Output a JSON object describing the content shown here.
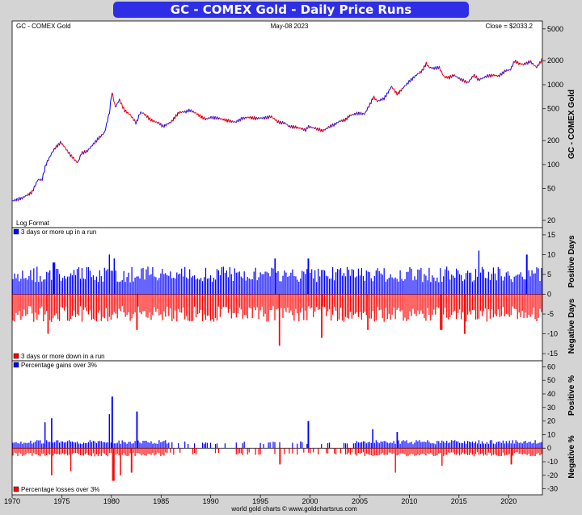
{
  "header": {
    "title": "GC - COMEX Gold - Daily Price Runs",
    "symbol_label": "GC - COMEX Gold",
    "date_label": "May-08  2023",
    "close_label": "Close = $2033.2",
    "footer": "world gold charts © www.goldchartsrus.com"
  },
  "colors": {
    "title_bar": "#2e2ee6",
    "up": "#0000ff",
    "down": "#ff0000",
    "background": "#ffffff",
    "frame": "#d4d4d4"
  },
  "chart_data": [
    {
      "type": "line",
      "name": "price",
      "scale": "log",
      "ylabel": "GC - COMEX Gold",
      "note": "Log Format",
      "ylim": [
        17,
        6000
      ],
      "xlim": [
        1970,
        2023.4
      ],
      "yticks": [
        20,
        50,
        100,
        200,
        500,
        1000,
        2000,
        5000
      ],
      "xticks": [
        1970,
        1975,
        1980,
        1985,
        1990,
        1995,
        2000,
        2005,
        2010,
        2015,
        2020
      ],
      "x": [
        1970.0,
        1971.0,
        1972.0,
        1972.6,
        1973.0,
        1973.4,
        1974.0,
        1974.3,
        1974.9,
        1975.3,
        1975.8,
        1976.6,
        1977.0,
        1977.5,
        1978.0,
        1978.8,
        1979.3,
        1979.8,
        1980.05,
        1980.4,
        1980.8,
        1981.3,
        1981.9,
        1982.5,
        1982.9,
        1983.2,
        1984.0,
        1984.8,
        1985.2,
        1986.0,
        1986.8,
        1987.5,
        1987.9,
        1988.5,
        1989.0,
        1989.5,
        1990.0,
        1990.8,
        1991.5,
        1992.5,
        1993.2,
        1993.8,
        1994.5,
        1995.5,
        1996.1,
        1996.8,
        1997.5,
        1997.9,
        1998.5,
        1999.0,
        1999.6,
        1999.8,
        2000.5,
        2001.3,
        2002.0,
        2002.5,
        2003.0,
        2003.5,
        2004.0,
        2004.8,
        2005.5,
        2006.0,
        2006.4,
        2006.8,
        2007.5,
        2008.2,
        2008.8,
        2009.5,
        2010.0,
        2010.8,
        2011.3,
        2011.7,
        2012.0,
        2012.5,
        2013.0,
        2013.5,
        2014.0,
        2014.5,
        2015.0,
        2015.9,
        2016.5,
        2017.0,
        2017.8,
        2018.5,
        2019.0,
        2019.7,
        2020.2,
        2020.6,
        2021.0,
        2021.5,
        2022.2,
        2022.8,
        2023.35
      ],
      "y": [
        35,
        38,
        45,
        65,
        64,
        100,
        140,
        160,
        190,
        165,
        135,
        105,
        140,
        145,
        170,
        220,
        250,
        450,
        820,
        520,
        650,
        480,
        420,
        330,
        450,
        440,
        360,
        330,
        300,
        340,
        450,
        460,
        480,
        440,
        400,
        370,
        390,
        380,
        360,
        340,
        380,
        390,
        380,
        385,
        400,
        340,
        330,
        300,
        295,
        285,
        270,
        300,
        285,
        265,
        300,
        320,
        350,
        360,
        410,
        440,
        430,
        560,
        700,
        620,
        680,
        950,
        760,
        950,
        1100,
        1350,
        1500,
        1850,
        1650,
        1600,
        1650,
        1250,
        1230,
        1320,
        1200,
        1060,
        1320,
        1150,
        1280,
        1320,
        1280,
        1500,
        1550,
        2000,
        1850,
        1800,
        1950,
        1650,
        2033.2
      ]
    },
    {
      "type": "bar",
      "name": "run_days",
      "ylabel_top": "Positive Days",
      "ylabel_bottom": "Negative Days",
      "legend_up": "3 days or more up in a run",
      "legend_down": "3 days or more down in a run",
      "ylim": [
        -16,
        16
      ],
      "yticks": [
        -15,
        -10,
        -5,
        0,
        5,
        10,
        15
      ],
      "peaks_x": [
        1974.2,
        1979.8,
        1980.3,
        1996.5,
        1999.8,
        2017.0,
        2021.8
      ],
      "peaks_pos": [
        8,
        10,
        9,
        9,
        9,
        11,
        10
      ],
      "peaks_neg_x": [
        1973.6,
        1982.6,
        1996.9,
        2001.2,
        2005.8,
        2013.2,
        2015.6
      ],
      "peaks_neg": [
        -10,
        -9,
        -13,
        -11,
        -9,
        -9,
        -10
      ]
    },
    {
      "type": "bar",
      "name": "run_percent",
      "ylabel_top": "Positive %",
      "ylabel_bottom": "Negative %",
      "legend_up": "Percentage gains over 3%",
      "legend_down": "Percentage losses over 3%",
      "ylim": [
        -32,
        62
      ],
      "yticks": [
        -30,
        -20,
        -10,
        0,
        10,
        20,
        30,
        40,
        50,
        60
      ],
      "peaks_x": [
        1973.3,
        1974.0,
        1979.8,
        1980.05,
        1982.6,
        1999.8,
        2006.3,
        2008.8
      ],
      "peaks_pos": [
        19,
        22,
        25,
        38,
        27,
        20,
        14,
        12
      ],
      "peaks_neg_x": [
        1974.0,
        1975.9,
        1980.2,
        1980.9,
        1982.0,
        1997.0,
        2008.6,
        2013.3,
        2020.3
      ],
      "peaks_neg": [
        -20,
        -17,
        -24,
        -20,
        -18,
        -12,
        -18,
        -13,
        -12
      ]
    }
  ]
}
